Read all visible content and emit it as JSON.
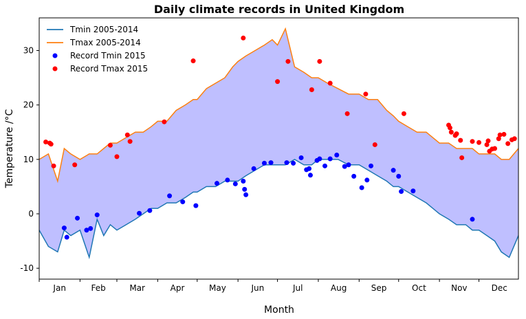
{
  "chart_data": {
    "type": "line",
    "title": "Daily climate records in United Kingdom",
    "xlabel": "Month",
    "ylabel": "Temperature /°C",
    "xlim": [
      1,
      365
    ],
    "ylim": [
      -12,
      36
    ],
    "yticks": [
      -10,
      0,
      10,
      20,
      30
    ],
    "month_labels": [
      "Jan",
      "Feb",
      "Mar",
      "Apr",
      "May",
      "Jun",
      "Jul",
      "Aug",
      "Sep",
      "Oct",
      "Nov",
      "Dec"
    ],
    "month_start_days": [
      1,
      32,
      60,
      91,
      121,
      152,
      182,
      213,
      244,
      274,
      305,
      335
    ],
    "legend_position": "top-left",
    "fill_between_color": "#bfbfff",
    "series": [
      {
        "name": "Tmin 2005-2014",
        "color": "#1f77b4",
        "kind": "line",
        "x": [
          1,
          8,
          15,
          20,
          25,
          32,
          39,
          45,
          50,
          55,
          60,
          67,
          74,
          80,
          86,
          91,
          98,
          105,
          112,
          118,
          121,
          128,
          135,
          142,
          148,
          152,
          158,
          165,
          172,
          178,
          182,
          188,
          195,
          202,
          208,
          213,
          220,
          228,
          236,
          244,
          251,
          258,
          265,
          270,
          274,
          281,
          288,
          295,
          300,
          305,
          312,
          318,
          325,
          330,
          335,
          341,
          347,
          352,
          358,
          365
        ],
        "y": [
          -3,
          -6,
          -7,
          -3,
          -4,
          -3,
          -8,
          -1,
          -4,
          -2,
          -3,
          -2,
          -1,
          0,
          1,
          1,
          2,
          2,
          3,
          4,
          4,
          5,
          5,
          6,
          6,
          6,
          7,
          8,
          9,
          9,
          9,
          9,
          10,
          9,
          9,
          10,
          10,
          10,
          9,
          9,
          8,
          7,
          6,
          5,
          5,
          4,
          3,
          2,
          1,
          0,
          -1,
          -2,
          -2,
          -3,
          -3,
          -4,
          -5,
          -7,
          -8,
          -4
        ]
      },
      {
        "name": "Tmax 2005-2014",
        "color": "#ff7f0e",
        "kind": "line",
        "x": [
          1,
          8,
          15,
          20,
          25,
          32,
          39,
          45,
          50,
          55,
          60,
          67,
          74,
          80,
          86,
          91,
          98,
          105,
          112,
          118,
          121,
          128,
          135,
          142,
          148,
          152,
          158,
          165,
          172,
          178,
          182,
          188,
          195,
          202,
          208,
          213,
          220,
          228,
          236,
          244,
          251,
          258,
          265,
          270,
          274,
          281,
          288,
          295,
          300,
          305,
          312,
          318,
          325,
          330,
          335,
          341,
          347,
          352,
          358,
          365
        ],
        "y": [
          10,
          11,
          6,
          12,
          11,
          10,
          11,
          11,
          12,
          13,
          13,
          14,
          15,
          15,
          16,
          17,
          17,
          19,
          20,
          21,
          21,
          23,
          24,
          25,
          27,
          28,
          29,
          30,
          31,
          32,
          31,
          34,
          27,
          26,
          25,
          25,
          24,
          23,
          22,
          22,
          21,
          21,
          19,
          18,
          17,
          16,
          15,
          15,
          14,
          13,
          13,
          12,
          12,
          12,
          11,
          11,
          11,
          10,
          10,
          12
        ]
      },
      {
        "name": "Record Tmin 2015",
        "color": "#0000ff",
        "kind": "scatter",
        "x": [
          20,
          22,
          30,
          37,
          40,
          45,
          77,
          85,
          100,
          110,
          120,
          136,
          144,
          150,
          156,
          157,
          158,
          164,
          172,
          177,
          189,
          194,
          200,
          204,
          206,
          207,
          212,
          214,
          218,
          222,
          227,
          233,
          236,
          240,
          246,
          250,
          253,
          270,
          274,
          276,
          285,
          330
        ],
        "y": [
          -2.6,
          -4.3,
          -0.8,
          -3.0,
          -2.7,
          -0.2,
          0.1,
          0.6,
          3.3,
          2.2,
          1.5,
          5.6,
          6.2,
          5.5,
          6.0,
          4.5,
          3.5,
          8.3,
          9.3,
          9.4,
          9.4,
          9.3,
          10.3,
          8.1,
          8.3,
          7.1,
          9.8,
          10.1,
          8.8,
          10.1,
          10.8,
          8.7,
          9.0,
          6.9,
          4.8,
          6.2,
          8.8,
          8.0,
          6.9,
          4.1,
          4.2,
          -1.0
        ]
      },
      {
        "name": "Record Tmax 2015",
        "color": "#ff0000",
        "kind": "scatter",
        "x": [
          6,
          9,
          10,
          12,
          28,
          55,
          60,
          68,
          70,
          96,
          118,
          156,
          182,
          190,
          208,
          214,
          222,
          235,
          249,
          256,
          278,
          312,
          313,
          314,
          317,
          318,
          321,
          322,
          330,
          335,
          341,
          342,
          343,
          345,
          347,
          350,
          351,
          354,
          357,
          360,
          362
        ],
        "y": [
          13.2,
          13.0,
          12.8,
          8.8,
          9.0,
          12.6,
          10.5,
          14.5,
          13.3,
          16.9,
          28.1,
          32.3,
          24.3,
          28.0,
          22.8,
          28.0,
          24.0,
          18.4,
          22.0,
          12.7,
          18.4,
          16.3,
          15.8,
          15.0,
          14.4,
          14.7,
          13.5,
          10.3,
          13.3,
          13.1,
          12.7,
          13.4,
          11.5,
          11.9,
          12.0,
          13.8,
          14.5,
          14.6,
          12.9,
          13.6,
          13.8
        ]
      }
    ]
  }
}
